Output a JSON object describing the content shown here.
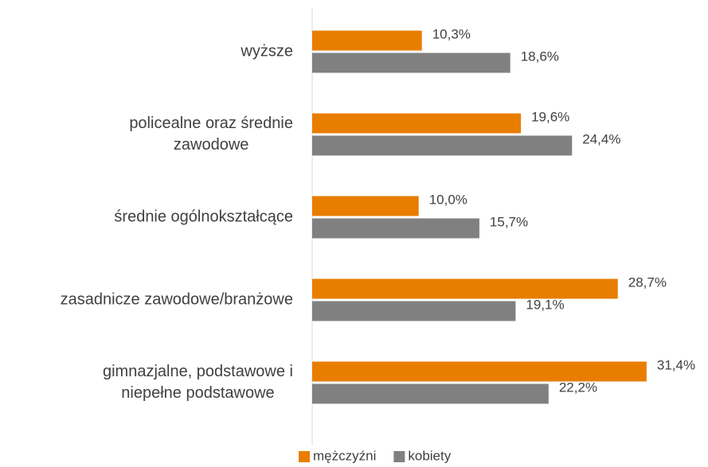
{
  "chart_data": {
    "type": "bar",
    "orientation": "horizontal",
    "categories": [
      "wyższe",
      "policealne oraz średnie zawodowe",
      "średnie ogólnokształcące",
      "zasadnicze zawodowe/branżowe",
      "gimnazjalne, podstawowe i niepełne podstawowe"
    ],
    "series": [
      {
        "name": "mężczyźni",
        "color": "#e87d00",
        "values": [
          10.3,
          19.6,
          10.0,
          28.7,
          31.4
        ],
        "value_labels": [
          "10,3%",
          "19,6%",
          "10,0%",
          "28,7%",
          "31,4%"
        ]
      },
      {
        "name": "kobiety",
        "color": "#808080",
        "values": [
          18.6,
          24.4,
          15.7,
          19.1,
          22.2
        ],
        "value_labels": [
          "18,6%",
          "24,4%",
          "15,7%",
          "19,1%",
          "22,2%"
        ]
      }
    ],
    "xlim": [
      0,
      35
    ],
    "legend": "bottom"
  }
}
